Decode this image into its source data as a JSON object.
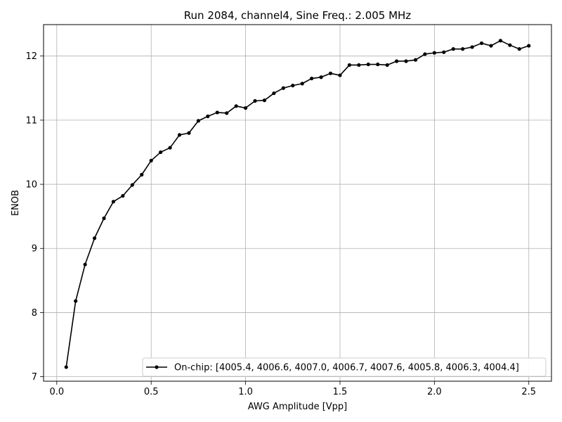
{
  "chart_data": {
    "type": "line",
    "title": "Run 2084, channel4, Sine Freq.: 2.005 MHz",
    "xlabel": "AWG Amplitude [Vpp]",
    "ylabel": "ENOB",
    "xlim": [
      -0.07,
      2.62
    ],
    "ylim": [
      6.93,
      12.49
    ],
    "xticks": [
      0.0,
      0.5,
      1.0,
      1.5,
      2.0,
      2.5
    ],
    "xtick_labels": [
      "0.0",
      "0.5",
      "1.0",
      "1.5",
      "2.0",
      "2.5"
    ],
    "yticks": [
      7,
      8,
      9,
      10,
      11,
      12
    ],
    "ytick_labels": [
      "7",
      "8",
      "9",
      "10",
      "11",
      "12"
    ],
    "grid": true,
    "legend_position": "lower-right",
    "series": [
      {
        "name": "On-chip: [4005.4, 4006.6, 4007.0, 4006.7, 4007.6, 4005.8, 4006.3, 4004.4]",
        "color": "#000000",
        "marker": "circle",
        "x": [
          0.05,
          0.1,
          0.15,
          0.2,
          0.25,
          0.3,
          0.35,
          0.4,
          0.45,
          0.5,
          0.55,
          0.6,
          0.65,
          0.7,
          0.75,
          0.8,
          0.85,
          0.9,
          0.95,
          1.0,
          1.05,
          1.1,
          1.15,
          1.2,
          1.25,
          1.3,
          1.35,
          1.4,
          1.45,
          1.5,
          1.55,
          1.6,
          1.65,
          1.7,
          1.75,
          1.8,
          1.85,
          1.9,
          1.95,
          2.0,
          2.05,
          2.1,
          2.15,
          2.2,
          2.25,
          2.3,
          2.35,
          2.4,
          2.45,
          2.5
        ],
        "y": [
          7.15,
          8.18,
          8.75,
          9.16,
          9.47,
          9.73,
          9.82,
          9.99,
          10.15,
          10.37,
          10.5,
          10.57,
          10.77,
          10.8,
          10.99,
          11.06,
          11.12,
          11.11,
          11.22,
          11.19,
          11.3,
          11.31,
          11.42,
          11.5,
          11.54,
          11.57,
          11.65,
          11.67,
          11.73,
          11.7,
          11.86,
          11.86,
          11.87,
          11.87,
          11.86,
          11.92,
          11.92,
          11.94,
          12.03,
          12.05,
          12.06,
          12.11,
          12.11,
          12.14,
          12.2,
          12.16,
          12.24,
          12.17,
          12.11,
          12.16
        ]
      }
    ]
  }
}
